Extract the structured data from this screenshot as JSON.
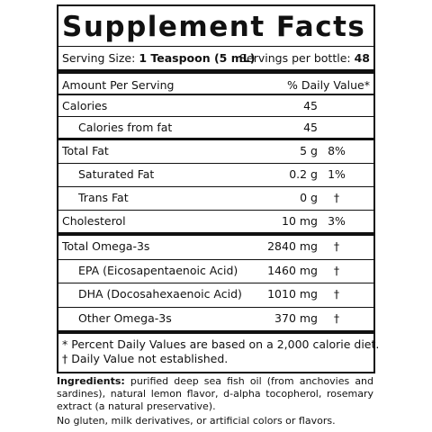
{
  "header": {
    "title": "Supplement Facts",
    "serving_size_label": "Serving Size:",
    "serving_size_value": "1 Teaspoon (5 mL)",
    "servings_label": "Servings per bottle:",
    "servings_value": "48"
  },
  "table": {
    "columns": [
      "Amount Per Serving",
      "% Daily Value*"
    ],
    "rows": [
      [
        "Calories",
        "45",
        ""
      ],
      [
        "Calories from fat",
        "45",
        ""
      ],
      [
        "Total Fat",
        "5 g",
        "8%"
      ],
      [
        "Saturated Fat",
        "0.2 g",
        "1%"
      ],
      [
        "Trans Fat",
        "0 g",
        "†"
      ],
      [
        "Cholesterol",
        "10 mg",
        "3%"
      ],
      [
        "Total Omega-3s",
        "2840 mg",
        "†"
      ],
      [
        "EPA (Eicosapentaenoic Acid)",
        "1460 mg",
        "†"
      ],
      [
        "DHA (Docosahexaenoic Acid)",
        "1010 mg",
        "†"
      ],
      [
        "Other Omega-3s",
        "370 mg",
        "†"
      ]
    ]
  },
  "footnotes": [
    "*  Percent Daily Values are based on a 2,000 calorie diet.",
    "†  Daily Value not established."
  ],
  "ingredients": {
    "label": "Ingredients:",
    "text": "purified deep sea fish oil (from anchovies and sardines), natural lemon flavor, d-alpha tocopherol, rosemary extract (a natural preservative)."
  },
  "note": "No gluten, milk derivatives, or artificial colors or flavors."
}
